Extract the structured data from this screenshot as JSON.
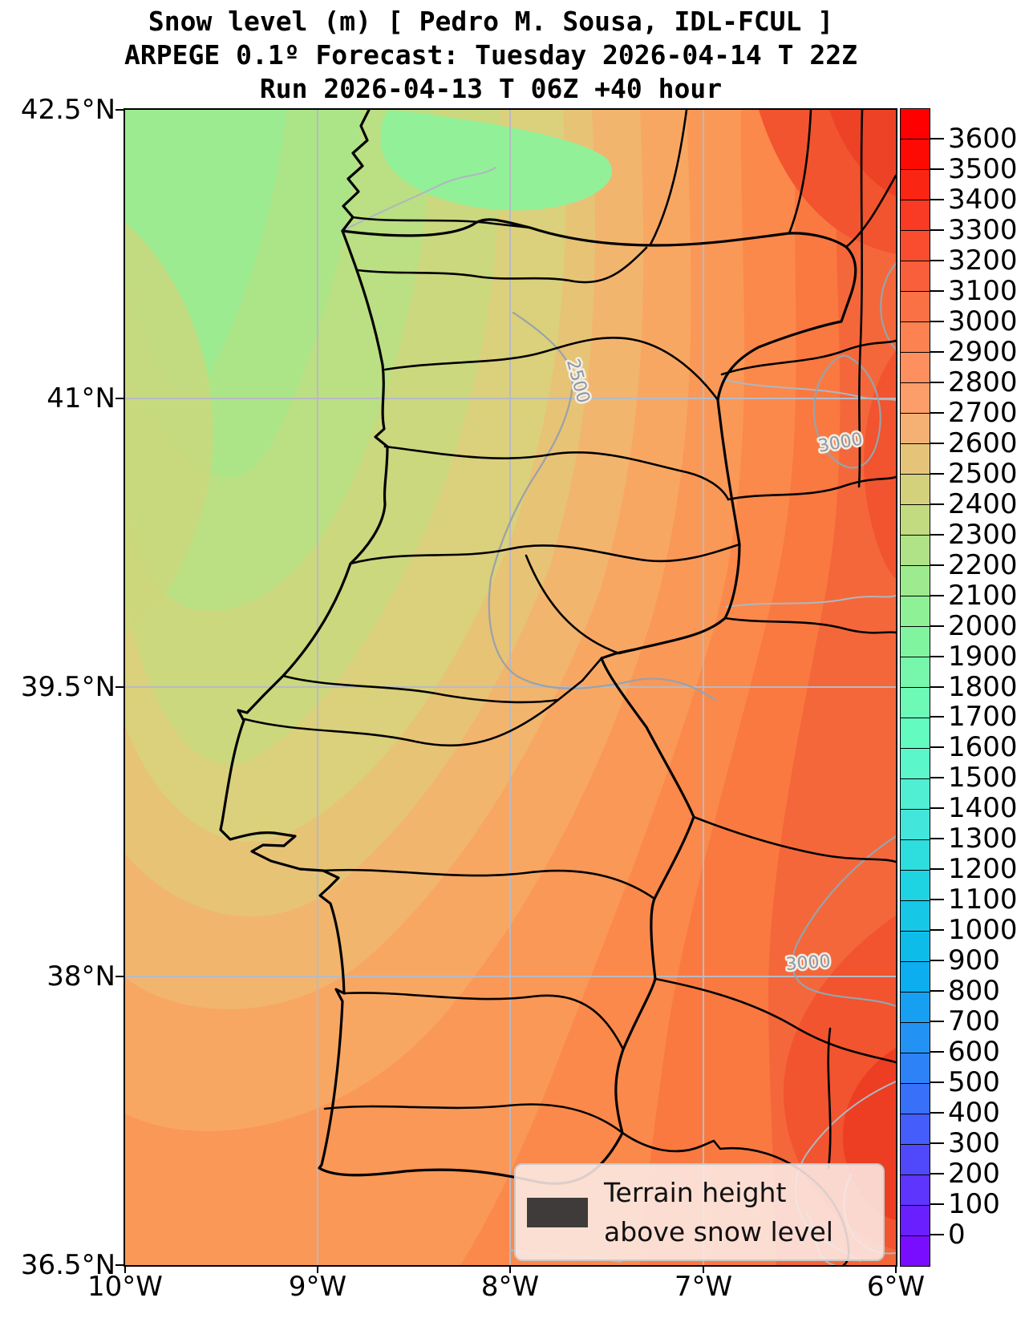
{
  "title": {
    "line1": "Snow level (m) [ Pedro M. Sousa, IDL-FCUL ]",
    "line2": "ARPEGE 0.1º Forecast: Tuesday 2026-04-14 T 22Z",
    "line3": "Run 2026-04-13 T 06Z +40 hour"
  },
  "axes": {
    "y_ticks": [
      "42.5°N",
      "41°N",
      "39.5°N",
      "38°N",
      "36.5°N"
    ],
    "x_ticks": [
      "10°W",
      "9°W",
      "8°W",
      "7°W",
      "6°W"
    ]
  },
  "colorbar": {
    "tick_labels": [
      "3600",
      "3500",
      "3400",
      "3300",
      "3200",
      "3100",
      "3000",
      "2900",
      "2800",
      "2700",
      "2600",
      "2500",
      "2400",
      "2300",
      "2200",
      "2100",
      "2000",
      "1900",
      "1800",
      "1700",
      "1600",
      "1500",
      "1400",
      "1300",
      "1200",
      "1100",
      "1000",
      "900",
      "800",
      "700",
      "600",
      "500",
      "400",
      "300",
      "200",
      "100",
      "0"
    ],
    "colors": [
      "#fe0000",
      "#fc0a03",
      "#fa2513",
      "#f93a24",
      "#fa4d30",
      "#fa5f3b",
      "#fb7146",
      "#fc8252",
      "#fd905e",
      "#fc9e69",
      "#f5b073",
      "#e5c47a",
      "#d4d17d",
      "#c2db81",
      "#b0e287",
      "#9eea8e",
      "#8ef196",
      "#81f4a0",
      "#77f7ab",
      "#6dfab6",
      "#64fbc1",
      "#5bf6ca",
      "#50eed3",
      "#42e6da",
      "#2eddde",
      "#1ed3e2",
      "#16c8e6",
      "#0ebcea",
      "#0caeef",
      "#17a0f2",
      "#2392f5",
      "#2d82f7",
      "#3970f9",
      "#445dfb",
      "#5049fc",
      "#5d35fd",
      "#6a20fe",
      "#790dff"
    ],
    "extend": "both"
  },
  "legend": {
    "label_line1": "Terrain height",
    "label_line2": "above snow level",
    "swatch_color": "#3f3b3a"
  },
  "map": {
    "contour_labels": [
      "2500",
      "3000",
      "3000"
    ],
    "grid_color": "#b7bac6",
    "boundary_color": "#000000",
    "river_color": "#aeb7c0",
    "contour_line_color": "#99a2ab"
  },
  "chart_data": {
    "type": "heatmap",
    "title": "Snow level (m) [ Pedro M. Sousa, IDL-FCUL ]",
    "model": "ARPEGE 0.1º",
    "valid_time": "Tuesday 2026-04-14 T 22Z",
    "run_time": "2026-04-13 T 06Z",
    "lead_hours": 40,
    "variable": "Snow level (m)",
    "xlabel_ticks_deg_west": [
      10,
      9,
      8,
      7,
      6
    ],
    "ylabel_ticks_deg_north": [
      42.5,
      41,
      39.5,
      38,
      36.5
    ],
    "colorbar_range": {
      "min": 0,
      "max": 3600,
      "step": 100,
      "extend": "both"
    },
    "labeled_grey_contours_m": [
      2500,
      3000,
      3000
    ],
    "legend_note": "Terrain height above snow level",
    "approx_field_values_m": [
      {
        "where": "NW Atlantic corner (10W,42.5N)",
        "value": 2150
      },
      {
        "where": "Minho coast NW Portugal",
        "value": 2000
      },
      {
        "where": "Porto",
        "value": 2300
      },
      {
        "where": "Central Portugal (8W,40N)",
        "value": 2500
      },
      {
        "where": "Lisbon",
        "value": 2600
      },
      {
        "where": "SW Atlantic corner (10W,36.5N)",
        "value": 2800
      },
      {
        "where": "Algarve south coast",
        "value": 2900
      },
      {
        "where": "NE corner (Zamora/Bragança)",
        "value": 3200
      },
      {
        "where": "E Spain Extremadura (6.3W,39N)",
        "value": 3100
      },
      {
        "where": "SE corner Andalucía (6W,37N)",
        "value": 3300
      }
    ]
  }
}
